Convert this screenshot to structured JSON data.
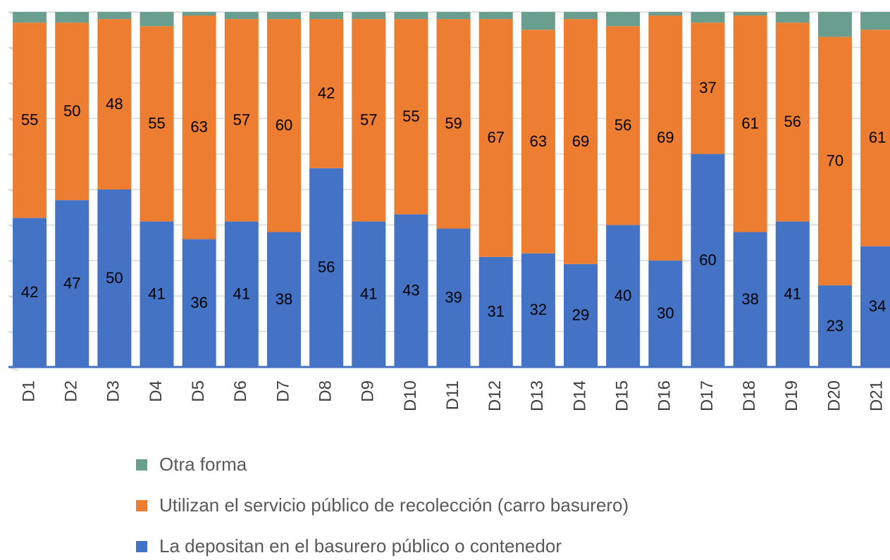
{
  "chart_data": {
    "type": "stacked_bar_100",
    "categories": [
      "D1",
      "D2",
      "D3",
      "D4",
      "D5",
      "D6",
      "D7",
      "D8",
      "D9",
      "D10",
      "D11",
      "D12",
      "D13",
      "D14",
      "D15",
      "D16",
      "D17",
      "D18",
      "D19",
      "D20",
      "D21"
    ],
    "series": [
      {
        "name": "La depositan en el basurero público o contenedor",
        "color": "#4472c4",
        "data_labels": true,
        "values": [
          42,
          47,
          50,
          41,
          36,
          41,
          38,
          56,
          41,
          43,
          39,
          31,
          32,
          29,
          40,
          30,
          60,
          38,
          41,
          23,
          34
        ]
      },
      {
        "name": "Utilizan el servicio público de recolección (carro basurero)",
        "color": "#ed7d31",
        "data_labels": true,
        "values": [
          55,
          50,
          48,
          55,
          63,
          57,
          60,
          42,
          57,
          55,
          59,
          67,
          63,
          69,
          56,
          69,
          37,
          61,
          56,
          70,
          61
        ]
      },
      {
        "name": "Otra forma",
        "color": "#6a9e8e",
        "data_labels": false,
        "values": [
          3,
          3,
          2,
          4,
          1,
          2,
          2,
          2,
          2,
          2,
          2,
          2,
          5,
          2,
          4,
          1,
          3,
          1,
          3,
          7,
          5
        ]
      }
    ],
    "ylim": [
      0,
      100
    ],
    "yticks": [
      0,
      10,
      20,
      30,
      40,
      50,
      60,
      70,
      80,
      90,
      100
    ],
    "grid": true,
    "legend": "bottom"
  }
}
